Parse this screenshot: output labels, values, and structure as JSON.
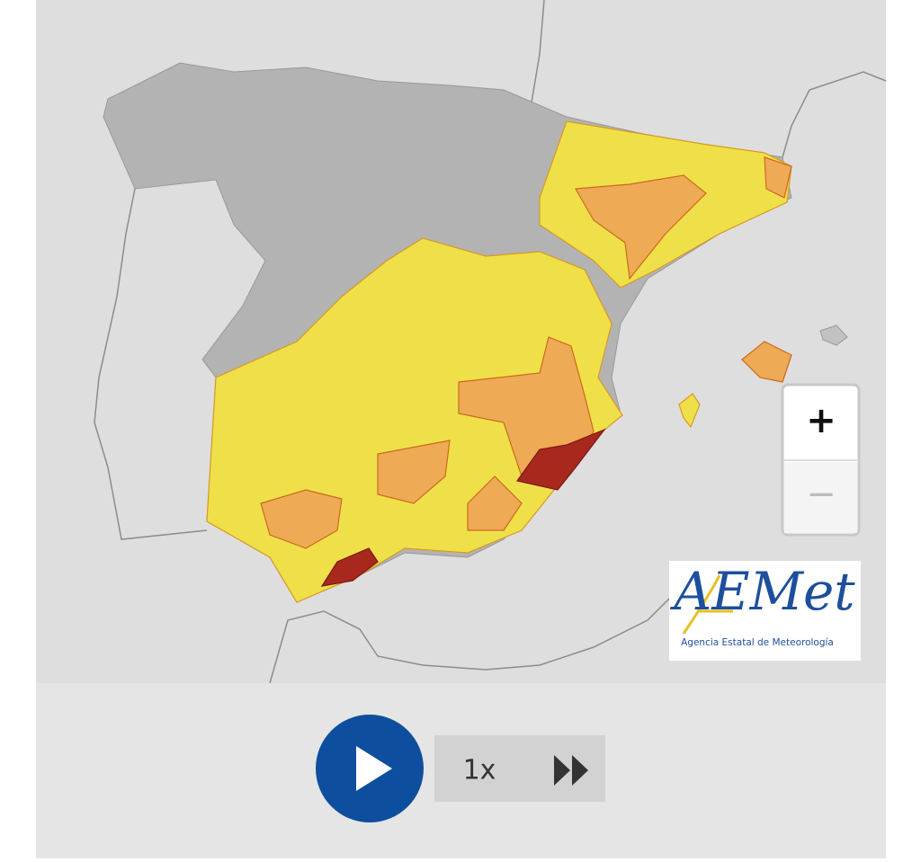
{
  "zoom": {
    "in": "+",
    "out": "−"
  },
  "logo": {
    "name": "AEMet",
    "subtitle": "Agencia Estatal de Meteorología"
  },
  "player": {
    "speed": "1x"
  }
}
